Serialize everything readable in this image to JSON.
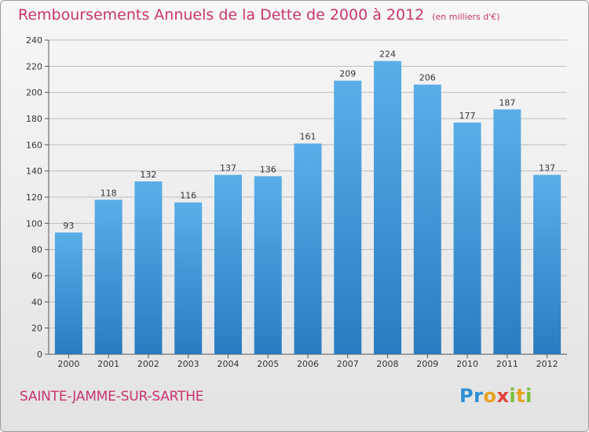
{
  "header": {
    "title": "Remboursements Annuels de la Dette de 2000 à 2012",
    "unit": "(en milliers d'€)"
  },
  "footer": {
    "commune": "SAINTE-JAMME-SUR-SARTHE",
    "logo": "Proxiti"
  },
  "colors": {
    "title": "#c8356e",
    "bar_top": "#5aaee8",
    "bar_bottom": "#2a7cc0",
    "grid": "#bdbdbd"
  },
  "chart_data": {
    "type": "bar",
    "title": "Remboursements Annuels de la Dette de 2000 à 2012",
    "xlabel": "",
    "ylabel": "",
    "categories": [
      "2000",
      "2001",
      "2002",
      "2003",
      "2004",
      "2005",
      "2006",
      "2007",
      "2008",
      "2009",
      "2010",
      "2011",
      "2012"
    ],
    "values": [
      93,
      118,
      132,
      116,
      137,
      136,
      161,
      209,
      224,
      206,
      177,
      187,
      137
    ],
    "ylim": [
      0,
      240
    ],
    "yticks": [
      0,
      20,
      40,
      60,
      80,
      100,
      120,
      140,
      160,
      180,
      200,
      220,
      240
    ],
    "grid": true,
    "legend": "none"
  }
}
